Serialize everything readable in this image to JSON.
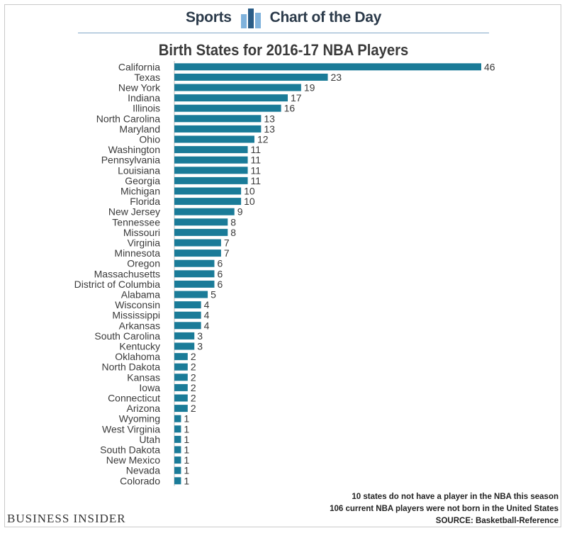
{
  "header": {
    "left_label": "Sports",
    "right_label": "Chart of the Day",
    "icon": "bar-chart-icon"
  },
  "chart_data": {
    "type": "bar",
    "orientation": "horizontal",
    "title": "Birth States for 2016-17 NBA Players",
    "categories": [
      "California",
      "Texas",
      "New York",
      "Indiana",
      "Illinois",
      "North Carolina",
      "Maryland",
      "Ohio",
      "Washington",
      "Pennsylvania",
      "Louisiana",
      "Georgia",
      "Michigan",
      "Florida",
      "New Jersey",
      "Tennessee",
      "Missouri",
      "Virginia",
      "Minnesota",
      "Oregon",
      "Massachusetts",
      "District of Columbia",
      "Alabama",
      "Wisconsin",
      "Mississippi",
      "Arkansas",
      "South Carolina",
      "Kentucky",
      "Oklahoma",
      "North Dakota",
      "Kansas",
      "Iowa",
      "Connecticut",
      "Arizona",
      "Wyoming",
      "West Virginia",
      "Utah",
      "South Dakota",
      "New Mexico",
      "Nevada",
      "Colorado"
    ],
    "values": [
      46,
      23,
      19,
      17,
      16,
      13,
      13,
      12,
      11,
      11,
      11,
      11,
      10,
      10,
      9,
      8,
      8,
      7,
      7,
      6,
      6,
      6,
      5,
      4,
      4,
      4,
      3,
      3,
      2,
      2,
      2,
      2,
      2,
      2,
      1,
      1,
      1,
      1,
      1,
      1,
      1
    ],
    "bar_color": "#1a7b98",
    "data_labels": true,
    "grid": false,
    "legend": "none"
  },
  "footnotes": [
    "10 states do not have a player in the NBA this season",
    "106 current NBA players were not born in the United States",
    "SOURCE: Basketball-Reference"
  ],
  "brand": "BUSINESS INSIDER",
  "colors": {
    "header_text": "#2b3a4a",
    "rule": "#7fa6c7",
    "logo_dark": "#2b5d87",
    "logo_light": "#7fb2dc"
  }
}
